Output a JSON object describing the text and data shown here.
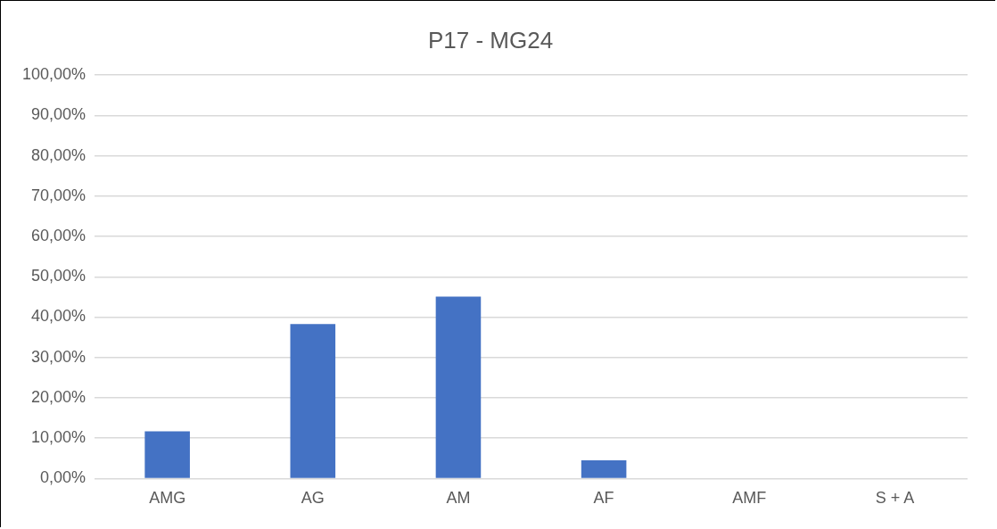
{
  "chart_data": {
    "type": "bar",
    "title": "P17 - MG24",
    "categories": [
      "AMG",
      "AG",
      "AM",
      "AF",
      "AMF",
      "S + A"
    ],
    "values": [
      11.7,
      38.3,
      45.1,
      4.5,
      0,
      0
    ],
    "color": "#4472c4",
    "ylim": [
      0,
      100
    ],
    "yticks": [
      {
        "value": 0,
        "label": "0,00%"
      },
      {
        "value": 10,
        "label": "10,00%"
      },
      {
        "value": 20,
        "label": "20,00%"
      },
      {
        "value": 30,
        "label": "30,00%"
      },
      {
        "value": 40,
        "label": "40,00%"
      },
      {
        "value": 50,
        "label": "50,00%"
      },
      {
        "value": 60,
        "label": "60,00%"
      },
      {
        "value": 70,
        "label": "70,00%"
      },
      {
        "value": 80,
        "label": "80,00%"
      },
      {
        "value": 90,
        "label": "90,00%"
      },
      {
        "value": 100,
        "label": "100,00%"
      }
    ],
    "grid": "y",
    "legend": false
  }
}
